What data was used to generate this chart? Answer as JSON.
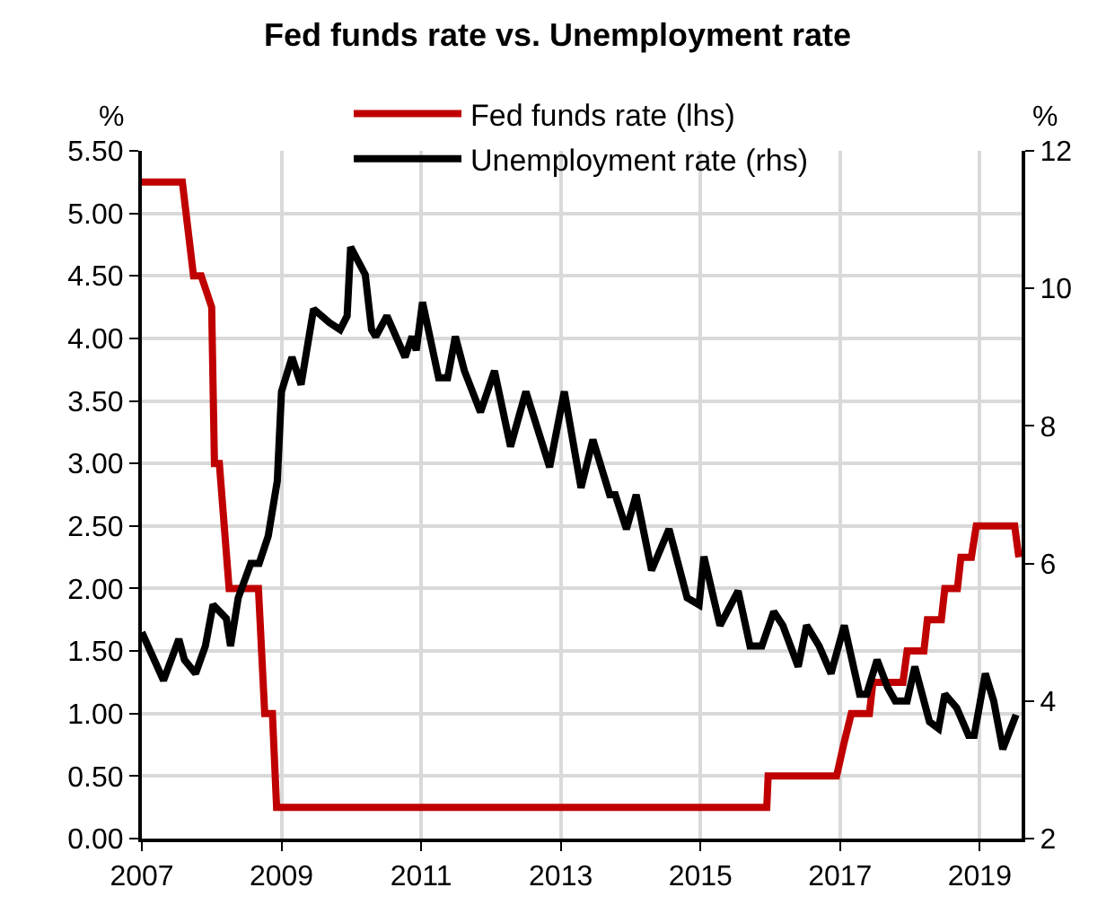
{
  "chart_data": {
    "type": "line",
    "title": "Fed funds rate vs. Unemployment rate",
    "ylabel": "%",
    "y2label": "%",
    "series": [
      {
        "name": "Fed funds rate (lhs)",
        "color": "#c00000",
        "x": [
          2007.0,
          2007.58,
          2007.74,
          2007.85,
          2008.0,
          2008.04,
          2008.11,
          2008.25,
          2008.67,
          2008.76,
          2008.87,
          2008.93,
          2015.95,
          2015.97,
          2016.95,
          2017.05,
          2017.16,
          2017.42,
          2017.47,
          2017.9,
          2017.96,
          2018.2,
          2018.25,
          2018.45,
          2018.5,
          2018.68,
          2018.73,
          2018.88,
          2018.95,
          2019.5,
          2019.56
        ],
        "values": [
          5.25,
          5.25,
          4.5,
          4.5,
          4.25,
          3.0,
          3.0,
          2.0,
          2.0,
          1.0,
          1.0,
          0.25,
          0.25,
          0.5,
          0.5,
          0.75,
          1.0,
          1.0,
          1.25,
          1.25,
          1.5,
          1.5,
          1.75,
          1.75,
          2.0,
          2.0,
          2.25,
          2.25,
          2.5,
          2.5,
          2.25
        ]
      },
      {
        "name": "Unemployment rate (rhs)",
        "color": "#000000",
        "axis": "y2",
        "x": [
          2007.0,
          2007.31,
          2007.53,
          2007.61,
          2007.77,
          2007.91,
          2008.02,
          2008.21,
          2008.27,
          2008.38,
          2008.56,
          2008.68,
          2008.81,
          2008.94,
          2009.0,
          2009.15,
          2009.28,
          2009.46,
          2009.69,
          2009.84,
          2009.94,
          2009.99,
          2010.2,
          2010.29,
          2010.35,
          2010.51,
          2010.77,
          2010.87,
          2010.93,
          2011.02,
          2011.25,
          2011.38,
          2011.49,
          2011.62,
          2011.85,
          2012.05,
          2012.28,
          2012.5,
          2012.84,
          2013.05,
          2013.29,
          2013.46,
          2013.7,
          2013.78,
          2013.94,
          2014.08,
          2014.3,
          2014.55,
          2014.81,
          2014.98,
          2015.05,
          2015.28,
          2015.54,
          2015.71,
          2015.88,
          2016.05,
          2016.18,
          2016.4,
          2016.52,
          2016.7,
          2016.87,
          2017.06,
          2017.28,
          2017.38,
          2017.53,
          2017.68,
          2017.79,
          2017.96,
          2018.07,
          2018.28,
          2018.41,
          2018.5,
          2018.67,
          2018.84,
          2018.92,
          2019.08,
          2019.2,
          2019.33,
          2019.52
        ],
        "values": [
          5.0,
          4.3,
          4.9,
          4.6,
          4.4,
          4.8,
          5.4,
          5.2,
          4.8,
          5.5,
          6.0,
          6.0,
          6.4,
          7.2,
          8.5,
          9.0,
          8.6,
          9.7,
          9.5,
          9.4,
          9.6,
          10.6,
          10.2,
          9.4,
          9.3,
          9.6,
          9.0,
          9.3,
          9.1,
          9.8,
          8.7,
          8.7,
          9.3,
          8.8,
          8.2,
          8.8,
          7.7,
          8.5,
          7.4,
          8.5,
          7.1,
          7.8,
          7.0,
          7.0,
          6.5,
          7.0,
          5.9,
          6.5,
          5.5,
          5.4,
          6.1,
          5.1,
          5.6,
          4.8,
          4.8,
          5.3,
          5.1,
          4.5,
          5.1,
          4.8,
          4.4,
          5.1,
          4.1,
          4.1,
          4.6,
          4.2,
          4.0,
          4.0,
          4.5,
          3.7,
          3.6,
          4.1,
          3.9,
          3.5,
          3.5,
          4.4,
          4.0,
          3.3,
          3.8
        ]
      }
    ],
    "xlim": [
      2007,
      2019.6
    ],
    "xticks": [
      2007,
      2009,
      2011,
      2013,
      2015,
      2017,
      2019
    ],
    "ylim": [
      0,
      5.5
    ],
    "yticks": [
      {
        "value": 0,
        "label": "0.00"
      },
      {
        "value": 0.5,
        "label": "0.50"
      },
      {
        "value": 1,
        "label": "1.00"
      },
      {
        "value": 1.5,
        "label": "1.50"
      },
      {
        "value": 2,
        "label": "2.00"
      },
      {
        "value": 2.5,
        "label": "2.50"
      },
      {
        "value": 3,
        "label": "3.00"
      },
      {
        "value": 3.5,
        "label": "3.50"
      },
      {
        "value": 4,
        "label": "4.00"
      },
      {
        "value": 4.5,
        "label": "4.50"
      },
      {
        "value": 5,
        "label": "5.00"
      },
      {
        "value": 5.5,
        "label": "5.50"
      }
    ],
    "y2lim": [
      2,
      12
    ],
    "y2ticks": [
      2,
      4,
      6,
      8,
      10,
      12
    ],
    "grid": true,
    "legend": "top",
    "marker": "none",
    "line_style": "solid"
  }
}
